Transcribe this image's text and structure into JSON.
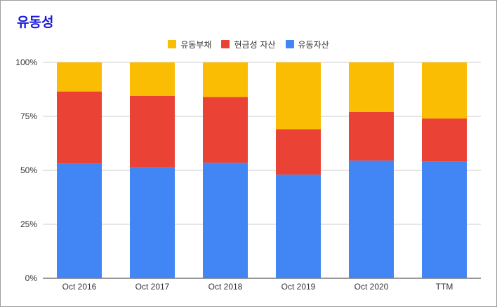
{
  "chart_data": {
    "type": "bar",
    "stacked": true,
    "title": "유동성",
    "xlabel": "",
    "ylabel": "",
    "categories": [
      "Oct 2016",
      "Oct 2017",
      "Oct 2018",
      "Oct 2019",
      "Oct 2020",
      "TTM"
    ],
    "series": [
      {
        "name": "유동자산",
        "color": "#4285f4",
        "values": [
          53,
          51.5,
          53.5,
          48,
          54.5,
          54
        ]
      },
      {
        "name": "현금성 자산",
        "color": "#ea4335",
        "values": [
          33.5,
          33,
          30.5,
          21,
          22.5,
          20
        ]
      },
      {
        "name": "유동부채",
        "color": "#fbbc04",
        "values": [
          13.5,
          15.5,
          16,
          31,
          23,
          26
        ]
      }
    ],
    "legend_order": [
      "유동부채",
      "현금성 자산",
      "유동자산"
    ],
    "y_ticks": [
      "0%",
      "25%",
      "50%",
      "75%",
      "100%"
    ],
    "ylim": [
      0,
      100
    ],
    "grid": true,
    "legend_position": "top-center"
  }
}
